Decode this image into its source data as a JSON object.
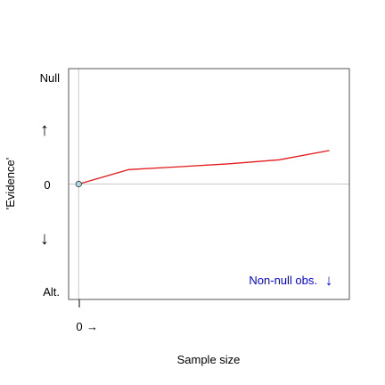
{
  "chart_data": {
    "type": "line",
    "title": "",
    "xlabel": "Sample size",
    "ylabel": "'Evidence'",
    "x_tick_label": "0",
    "x_arrow": "→",
    "y_tick_label": "0",
    "y_top_label": "Null",
    "y_bottom_label": "Alt.",
    "y_up_arrow": "↑",
    "y_down_arrow": "↓",
    "xlim": [
      -0.1,
      2.7
    ],
    "ylim": [
      -1,
      1
    ],
    "grid": false,
    "reference_lines": {
      "x": 0,
      "y": 0
    },
    "series": [
      {
        "color": "#e41a1c",
        "x": [
          0,
          0.5,
          1.0,
          1.5,
          2.0,
          2.5
        ],
        "y": [
          0,
          0.125,
          0.15,
          0.175,
          0.21,
          0.29
        ]
      }
    ],
    "start_point": {
      "x": 0,
      "y": 0,
      "fill": "#add8e6"
    },
    "annotation": {
      "text": "Non-null obs.",
      "arrow": "↓",
      "color": "#0000ee",
      "position": "bottom-right"
    }
  }
}
